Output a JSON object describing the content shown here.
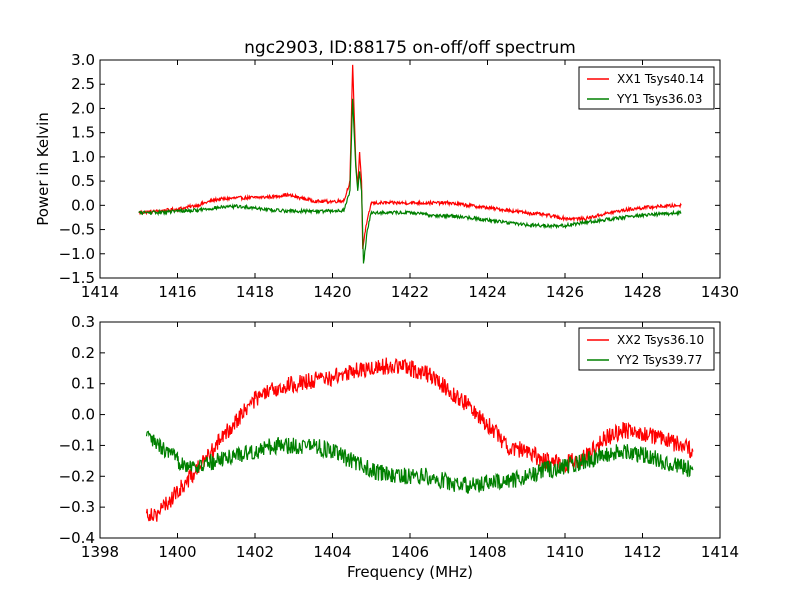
{
  "figure_title": "ngc2903, ID:88175 on-off/off spectrum",
  "chart_data": [
    {
      "type": "line",
      "title": "ngc2903, ID:88175 on-off/off spectrum",
      "xlabel": "",
      "ylabel": "Power in Kelvin",
      "xlim": [
        1414,
        1430
      ],
      "ylim": [
        -1.5,
        3.0
      ],
      "xticks": [
        1414,
        1416,
        1418,
        1420,
        1422,
        1424,
        1426,
        1428,
        1430
      ],
      "yticks": [
        -1.5,
        -1.0,
        -0.5,
        0.0,
        0.5,
        1.0,
        1.5,
        2.0,
        2.5,
        3.0
      ],
      "xtick_labels": [
        "1414",
        "1416",
        "1418",
        "1420",
        "1422",
        "1424",
        "1426",
        "1428",
        "1430"
      ],
      "ytick_labels": [
        "−1.5",
        "−1.0",
        "−0.5",
        "0.0",
        "0.5",
        "1.0",
        "1.5",
        "2.0",
        "2.5",
        "3.0"
      ],
      "grid": false,
      "legend_position": "top-right",
      "series": [
        {
          "name": "XX1 Tsys40.14",
          "color": "#ff0000",
          "x": [
            1415.0,
            1415.5,
            1416.0,
            1416.5,
            1417.0,
            1417.5,
            1418.0,
            1418.5,
            1418.8,
            1419.2,
            1419.6,
            1420.0,
            1420.3,
            1420.45,
            1420.52,
            1420.6,
            1420.65,
            1420.7,
            1420.75,
            1420.78,
            1420.85,
            1421.0,
            1421.5,
            1422.0,
            1422.5,
            1423.0,
            1423.5,
            1424.0,
            1424.5,
            1425.0,
            1425.5,
            1426.0,
            1426.5,
            1427.0,
            1427.5,
            1428.0,
            1428.5,
            1429.0
          ],
          "y": [
            -0.15,
            -0.12,
            -0.08,
            0.0,
            0.12,
            0.15,
            0.16,
            0.18,
            0.22,
            0.15,
            0.08,
            0.08,
            0.1,
            0.5,
            2.9,
            0.9,
            0.4,
            1.1,
            0.5,
            -0.9,
            -0.5,
            0.05,
            0.05,
            0.05,
            0.05,
            0.05,
            0.0,
            -0.05,
            -0.1,
            -0.15,
            -0.2,
            -0.27,
            -0.28,
            -0.18,
            -0.1,
            -0.05,
            -0.02,
            0.0
          ]
        },
        {
          "name": "YY1 Tsys36.03",
          "color": "#008000",
          "x": [
            1415.0,
            1415.5,
            1416.0,
            1416.5,
            1417.0,
            1417.5,
            1418.0,
            1418.5,
            1419.0,
            1419.5,
            1420.0,
            1420.3,
            1420.45,
            1420.52,
            1420.6,
            1420.65,
            1420.7,
            1420.75,
            1420.8,
            1420.9,
            1421.0,
            1421.5,
            1422.0,
            1422.5,
            1423.0,
            1423.5,
            1424.0,
            1424.5,
            1425.0,
            1425.5,
            1426.0,
            1426.5,
            1427.0,
            1427.5,
            1428.0,
            1428.5,
            1429.0
          ],
          "y": [
            -0.15,
            -0.15,
            -0.12,
            -0.1,
            -0.05,
            -0.02,
            -0.05,
            -0.1,
            -0.12,
            -0.12,
            -0.12,
            -0.1,
            0.3,
            2.2,
            0.8,
            0.3,
            0.7,
            0.3,
            -1.2,
            -0.5,
            -0.15,
            -0.15,
            -0.15,
            -0.2,
            -0.22,
            -0.25,
            -0.3,
            -0.35,
            -0.4,
            -0.42,
            -0.42,
            -0.35,
            -0.3,
            -0.25,
            -0.2,
            -0.18,
            -0.15
          ]
        }
      ]
    },
    {
      "type": "line",
      "title": "",
      "xlabel": "Frequency (MHz)",
      "ylabel": "",
      "xlim": [
        1398,
        1414
      ],
      "ylim": [
        -0.4,
        0.3
      ],
      "xticks": [
        1398,
        1400,
        1402,
        1404,
        1406,
        1408,
        1410,
        1412,
        1414
      ],
      "yticks": [
        -0.4,
        -0.3,
        -0.2,
        -0.1,
        0.0,
        0.1,
        0.2,
        0.3
      ],
      "xtick_labels": [
        "1398",
        "1400",
        "1402",
        "1404",
        "1406",
        "1408",
        "1410",
        "1412",
        "1414"
      ],
      "ytick_labels": [
        "−0.4",
        "−0.3",
        "−0.2",
        "−0.1",
        "0.0",
        "0.1",
        "0.2",
        "0.3"
      ],
      "grid": false,
      "legend_position": "top-right",
      "series": [
        {
          "name": "XX2 Tsys36.10",
          "color": "#ff0000",
          "x": [
            1399.2,
            1399.5,
            1400.0,
            1400.5,
            1401.0,
            1401.5,
            1402.0,
            1402.5,
            1403.0,
            1403.5,
            1404.0,
            1404.5,
            1405.0,
            1405.5,
            1406.0,
            1406.5,
            1407.0,
            1407.5,
            1408.0,
            1408.5,
            1409.0,
            1409.5,
            1410.0,
            1410.5,
            1411.0,
            1411.5,
            1412.0,
            1412.5,
            1413.0,
            1413.3
          ],
          "y": [
            -0.32,
            -0.32,
            -0.25,
            -0.18,
            -0.1,
            -0.02,
            0.05,
            0.08,
            0.1,
            0.11,
            0.12,
            0.14,
            0.15,
            0.16,
            0.15,
            0.13,
            0.08,
            0.03,
            -0.03,
            -0.1,
            -0.12,
            -0.15,
            -0.16,
            -0.14,
            -0.08,
            -0.05,
            -0.06,
            -0.08,
            -0.1,
            -0.12
          ]
        },
        {
          "name": "YY2 Tsys39.77",
          "color": "#008000",
          "x": [
            1399.2,
            1399.5,
            1400.0,
            1400.5,
            1401.0,
            1401.5,
            1402.0,
            1402.5,
            1403.0,
            1403.5,
            1404.0,
            1404.5,
            1405.0,
            1405.5,
            1406.0,
            1406.5,
            1407.0,
            1407.5,
            1408.0,
            1408.5,
            1409.0,
            1409.5,
            1410.0,
            1410.5,
            1411.0,
            1411.5,
            1412.0,
            1412.5,
            1413.0,
            1413.3
          ],
          "y": [
            -0.07,
            -0.1,
            -0.15,
            -0.17,
            -0.15,
            -0.13,
            -0.12,
            -0.1,
            -0.1,
            -0.1,
            -0.12,
            -0.15,
            -0.18,
            -0.2,
            -0.2,
            -0.2,
            -0.22,
            -0.23,
            -0.22,
            -0.22,
            -0.2,
            -0.18,
            -0.17,
            -0.15,
            -0.13,
            -0.12,
            -0.13,
            -0.15,
            -0.17,
            -0.18
          ]
        }
      ]
    }
  ]
}
